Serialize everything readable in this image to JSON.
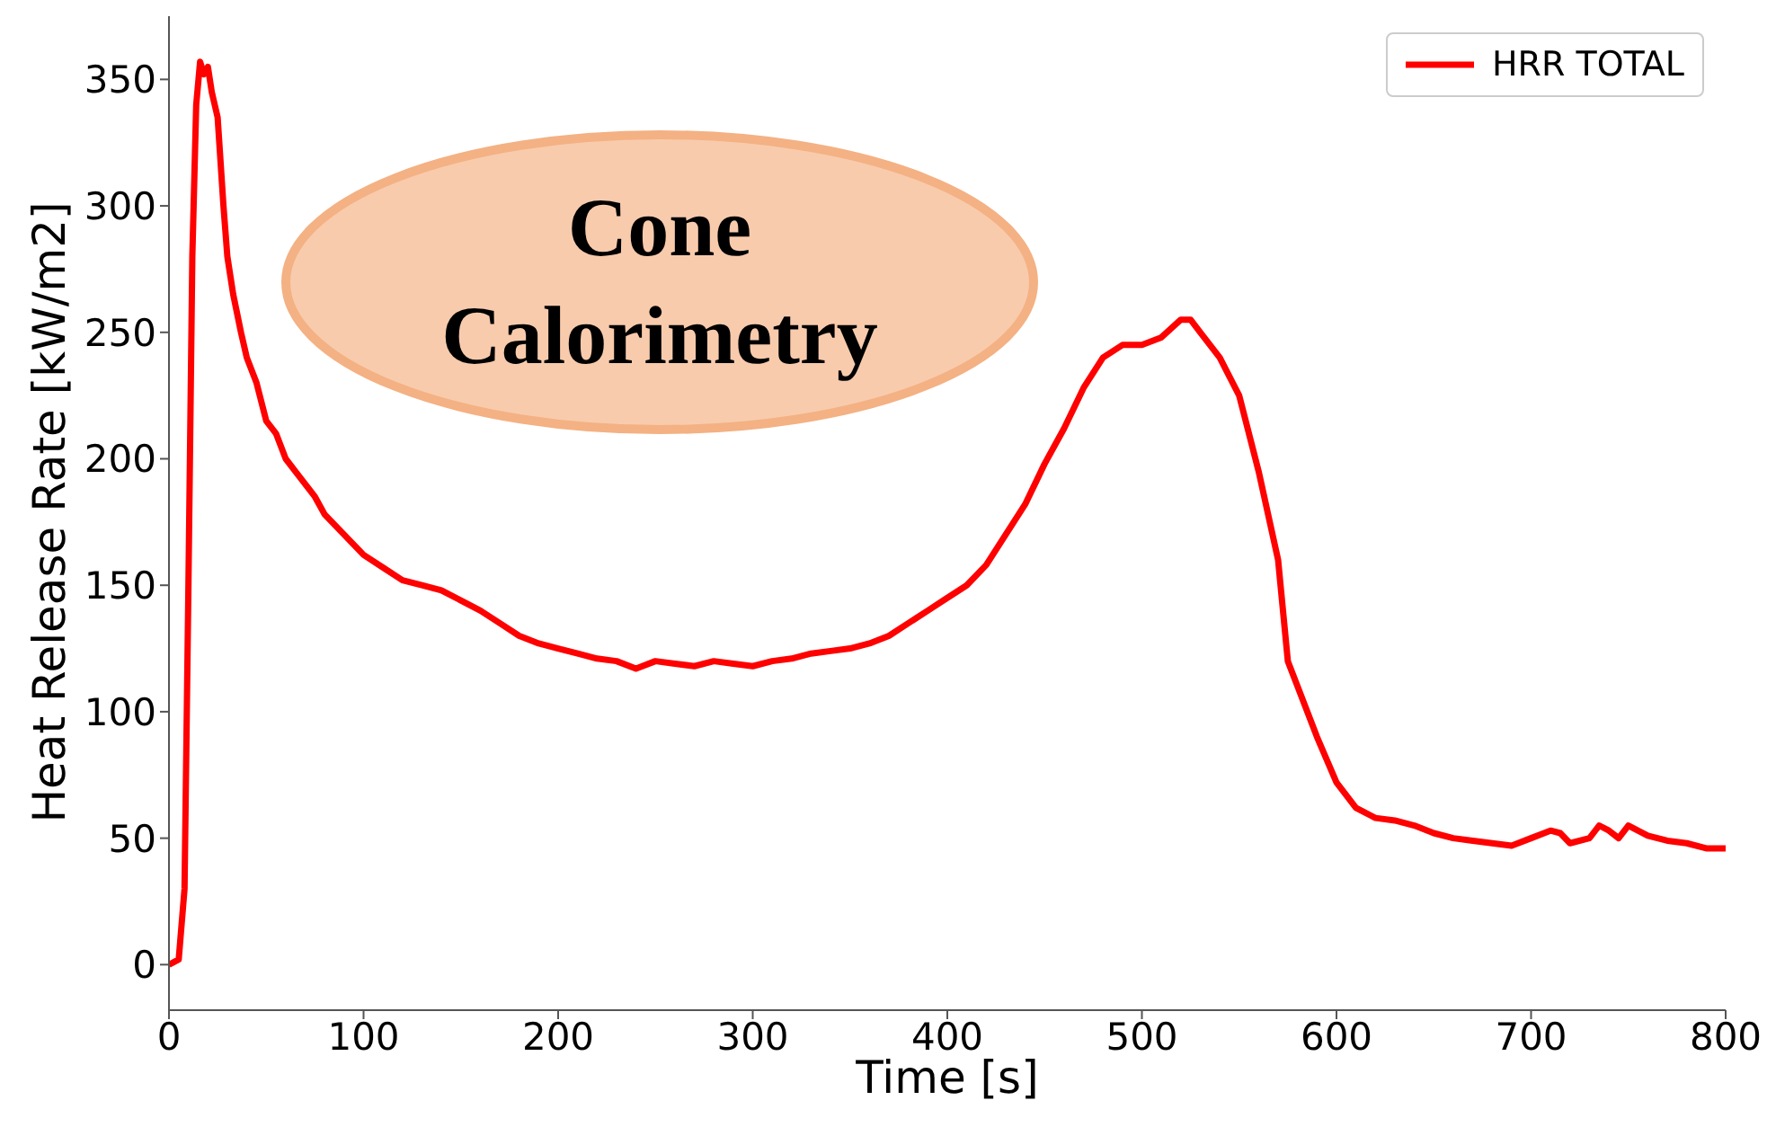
{
  "chart_data": {
    "type": "line",
    "xlabel": "Time [s]",
    "ylabel": "Heat Release Rate [kW/m2]",
    "annotations": [
      "Cone Calorimetry"
    ],
    "x": [
      0,
      5,
      8,
      10,
      12,
      14,
      16,
      18,
      20,
      22,
      25,
      28,
      30,
      33,
      37,
      40,
      45,
      50,
      55,
      60,
      65,
      70,
      75,
      80,
      90,
      100,
      110,
      120,
      130,
      140,
      150,
      160,
      170,
      180,
      190,
      200,
      210,
      220,
      230,
      240,
      250,
      260,
      270,
      280,
      290,
      300,
      310,
      320,
      330,
      340,
      350,
      360,
      370,
      380,
      390,
      400,
      410,
      420,
      430,
      440,
      450,
      460,
      470,
      480,
      490,
      500,
      510,
      520,
      525,
      530,
      540,
      550,
      560,
      570,
      575,
      580,
      590,
      600,
      610,
      620,
      630,
      640,
      650,
      660,
      670,
      680,
      690,
      700,
      710,
      715,
      720,
      730,
      735,
      740,
      745,
      750,
      760,
      770,
      780,
      790,
      800
    ],
    "series": [
      {
        "name": "HRR TOTAL",
        "color": "#ff0000",
        "values": [
          0,
          2,
          30,
          150,
          280,
          340,
          357,
          352,
          355,
          345,
          335,
          300,
          280,
          265,
          250,
          240,
          230,
          215,
          210,
          200,
          195,
          190,
          185,
          178,
          170,
          162,
          157,
          152,
          150,
          148,
          144,
          140,
          135,
          130,
          127,
          125,
          123,
          121,
          120,
          117,
          120,
          119,
          118,
          120,
          119,
          118,
          120,
          121,
          123,
          124,
          125,
          127,
          130,
          135,
          140,
          145,
          150,
          158,
          170,
          182,
          198,
          212,
          228,
          240,
          245,
          245,
          248,
          255,
          255,
          250,
          240,
          225,
          195,
          160,
          120,
          110,
          90,
          72,
          62,
          58,
          57,
          55,
          52,
          50,
          49,
          48,
          47,
          50,
          53,
          52,
          48,
          50,
          55,
          53,
          50,
          55,
          51,
          49,
          48,
          46,
          46
        ]
      }
    ],
    "xlim": [
      0,
      800
    ],
    "xticks": [
      0,
      100,
      200,
      300,
      400,
      500,
      600,
      700,
      800
    ],
    "ylim": [
      -18,
      375
    ],
    "yticks": [
      0,
      50,
      100,
      150,
      200,
      250,
      300,
      350
    ],
    "grid": false,
    "legend": "top right",
    "marker": "none",
    "line_style": "solid"
  }
}
